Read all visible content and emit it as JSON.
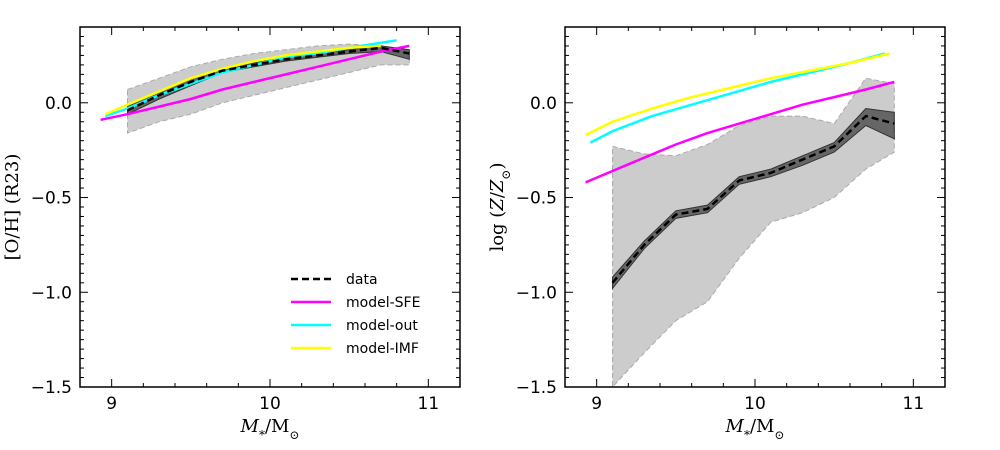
{
  "chart_data": [
    {
      "type": "line",
      "panel": "left",
      "title": "",
      "xlabel": "M*/M⊙",
      "ylabel": "[O/H] (R23)",
      "xlim": [
        8.8,
        11.2
      ],
      "ylim": [
        -1.5,
        0.4
      ],
      "xticks": [
        9,
        10,
        11
      ],
      "xtick_labels": [
        "9",
        "10",
        "11"
      ],
      "yticks": [
        -1.5,
        -1.0,
        -0.5,
        0.0
      ],
      "ytick_labels": [
        "−1.5",
        "−1.0",
        "−0.5",
        "0.0"
      ],
      "grid": false,
      "legend_position": "lower-right",
      "series": [
        {
          "name": "data",
          "color": "#000000",
          "style": "dashed",
          "x": [
            9.1,
            9.3,
            9.5,
            9.7,
            9.9,
            10.1,
            10.3,
            10.5,
            10.7,
            10.88
          ],
          "y": [
            -0.04,
            0.04,
            0.11,
            0.17,
            0.2,
            0.23,
            0.25,
            0.27,
            0.29,
            0.26
          ]
        },
        {
          "name": "model-SFE",
          "color": "#ff00ff",
          "style": "solid",
          "x": [
            8.93,
            9.1,
            9.3,
            9.5,
            9.7,
            9.9,
            10.1,
            10.3,
            10.5,
            10.7,
            10.88
          ],
          "y": [
            -0.09,
            -0.06,
            -0.02,
            0.02,
            0.07,
            0.11,
            0.15,
            0.19,
            0.23,
            0.27,
            0.3
          ]
        },
        {
          "name": "model-out",
          "color": "#00ffff",
          "style": "solid",
          "x": [
            8.96,
            9.1,
            9.3,
            9.5,
            9.7,
            9.9,
            10.1,
            10.3,
            10.5,
            10.8
          ],
          "y": [
            -0.07,
            -0.03,
            0.04,
            0.1,
            0.16,
            0.2,
            0.24,
            0.26,
            0.29,
            0.33
          ]
        },
        {
          "name": "model-IMF",
          "color": "#ffff00",
          "style": "solid",
          "x": [
            8.96,
            9.1,
            9.3,
            9.5,
            9.7,
            9.9,
            10.1,
            10.3,
            10.5,
            10.7
          ],
          "y": [
            -0.06,
            -0.01,
            0.06,
            0.13,
            0.18,
            0.22,
            0.25,
            0.27,
            0.29,
            0.3
          ]
        }
      ],
      "scatter_band": {
        "x": [
          9.1,
          9.3,
          9.5,
          9.7,
          9.9,
          10.1,
          10.3,
          10.5,
          10.7,
          10.88
        ],
        "upper": [
          0.07,
          0.13,
          0.19,
          0.23,
          0.26,
          0.28,
          0.3,
          0.31,
          0.3,
          0.28
        ],
        "lower": [
          -0.16,
          -0.1,
          -0.06,
          0.0,
          0.04,
          0.08,
          0.12,
          0.16,
          0.2,
          0.2
        ]
      },
      "error_band": {
        "x": [
          9.1,
          9.3,
          9.5,
          9.7,
          9.9,
          10.1,
          10.3,
          10.5,
          10.7,
          10.88
        ],
        "upper": [
          -0.02,
          0.06,
          0.13,
          0.18,
          0.21,
          0.24,
          0.26,
          0.28,
          0.3,
          0.28
        ],
        "lower": [
          -0.06,
          0.02,
          0.09,
          0.16,
          0.19,
          0.22,
          0.24,
          0.26,
          0.27,
          0.23
        ]
      },
      "legend": [
        "data",
        "model-SFE",
        "model-out",
        "model-IMF"
      ]
    },
    {
      "type": "line",
      "panel": "right",
      "title": "",
      "xlabel": "M*/M⊙",
      "ylabel": "log (Z/Z⊙)",
      "xlim": [
        8.8,
        11.2
      ],
      "ylim": [
        -1.5,
        0.4
      ],
      "xticks": [
        9,
        10,
        11
      ],
      "xtick_labels": [
        "9",
        "10",
        "11"
      ],
      "yticks": [
        -1.5,
        -1.0,
        -0.5,
        0.0
      ],
      "ytick_labels": [
        "−1.5",
        "−1.0",
        "−0.5",
        "0.0"
      ],
      "grid": false,
      "series": [
        {
          "name": "data",
          "color": "#000000",
          "style": "dashed",
          "x": [
            9.1,
            9.3,
            9.5,
            9.7,
            9.9,
            10.1,
            10.3,
            10.5,
            10.7,
            10.88
          ],
          "y": [
            -0.95,
            -0.75,
            -0.59,
            -0.56,
            -0.41,
            -0.37,
            -0.3,
            -0.23,
            -0.07,
            -0.11
          ]
        },
        {
          "name": "model-SFE",
          "color": "#ff00ff",
          "style": "solid",
          "x": [
            8.93,
            9.1,
            9.3,
            9.5,
            9.7,
            9.9,
            10.1,
            10.3,
            10.5,
            10.7,
            10.88
          ],
          "y": [
            -0.42,
            -0.36,
            -0.29,
            -0.22,
            -0.16,
            -0.11,
            -0.06,
            -0.01,
            0.03,
            0.07,
            0.11
          ]
        },
        {
          "name": "model-out",
          "color": "#00ffff",
          "style": "solid",
          "x": [
            8.96,
            9.1,
            9.35,
            9.6,
            9.85,
            10.1,
            10.35,
            10.6,
            10.82
          ],
          "y": [
            -0.21,
            -0.15,
            -0.07,
            -0.01,
            0.05,
            0.11,
            0.16,
            0.21,
            0.26
          ]
        },
        {
          "name": "model-IMF",
          "color": "#ffff00",
          "style": "solid",
          "x": [
            8.93,
            9.1,
            9.35,
            9.6,
            9.85,
            10.1,
            10.35,
            10.6,
            10.85
          ],
          "y": [
            -0.17,
            -0.1,
            -0.03,
            0.03,
            0.08,
            0.13,
            0.17,
            0.21,
            0.26
          ]
        }
      ],
      "scatter_band": {
        "x": [
          9.1,
          9.3,
          9.5,
          9.7,
          9.9,
          10.1,
          10.3,
          10.5,
          10.7,
          10.88
        ],
        "upper": [
          -0.23,
          -0.27,
          -0.28,
          -0.22,
          -0.12,
          -0.07,
          -0.07,
          -0.11,
          0.13,
          0.1
        ],
        "lower": [
          -1.5,
          -1.32,
          -1.15,
          -1.05,
          -0.82,
          -0.63,
          -0.58,
          -0.5,
          -0.35,
          -0.26
        ]
      },
      "error_band": {
        "x": [
          9.1,
          9.3,
          9.5,
          9.7,
          9.9,
          10.1,
          10.3,
          10.5,
          10.7,
          10.88
        ],
        "upper": [
          -0.92,
          -0.73,
          -0.57,
          -0.54,
          -0.39,
          -0.35,
          -0.28,
          -0.21,
          -0.03,
          -0.05
        ],
        "lower": [
          -0.98,
          -0.77,
          -0.61,
          -0.58,
          -0.43,
          -0.39,
          -0.33,
          -0.26,
          -0.12,
          -0.19
        ]
      }
    }
  ]
}
